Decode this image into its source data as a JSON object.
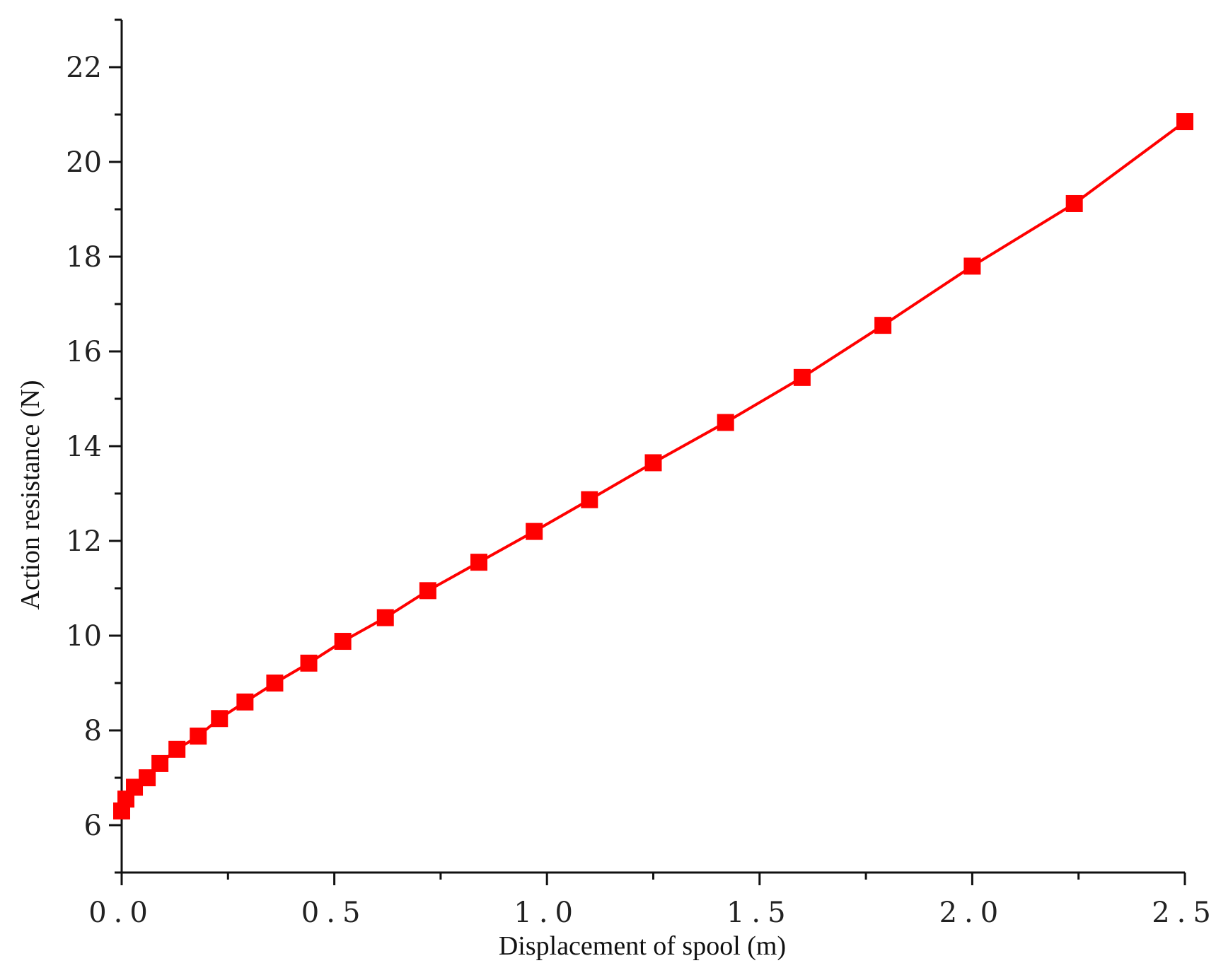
{
  "chart_data": {
    "type": "line",
    "title": "",
    "xlabel": "Displacement of spool (m)",
    "ylabel": "Action resistance (N)",
    "xlim": [
      0,
      2.5
    ],
    "ylim": [
      5,
      23
    ],
    "x_ticks": [
      "0.0",
      "0.5",
      "1.0",
      "1.5",
      "2.0",
      "2.5"
    ],
    "y_ticks": [
      "6",
      "8",
      "10",
      "12",
      "14",
      "16",
      "18",
      "20",
      "22"
    ],
    "grid": false,
    "legend": "none",
    "series": [
      {
        "color": "#ff0000",
        "marker": "square",
        "x": [
          0.0,
          0.01,
          0.03,
          0.06,
          0.09,
          0.13,
          0.18,
          0.23,
          0.29,
          0.36,
          0.44,
          0.52,
          0.62,
          0.72,
          0.84,
          0.97,
          1.1,
          1.25,
          1.42,
          1.6,
          1.79,
          2.0,
          2.24,
          2.5
        ],
        "y": [
          6.3,
          6.55,
          6.8,
          7.0,
          7.3,
          7.6,
          7.88,
          8.25,
          8.6,
          9.0,
          9.42,
          9.88,
          10.38,
          10.95,
          11.55,
          12.2,
          12.87,
          13.65,
          14.5,
          15.45,
          16.55,
          17.8,
          19.12,
          20.85
        ]
      }
    ]
  }
}
